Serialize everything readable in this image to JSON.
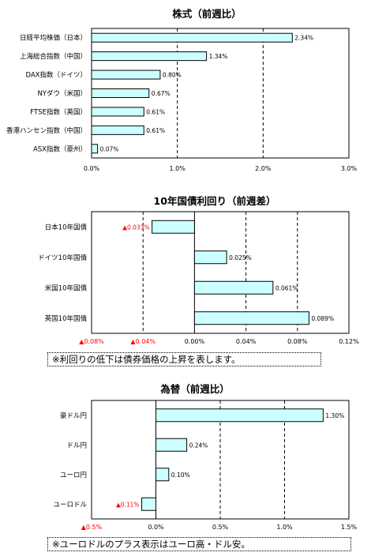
{
  "chart_data": [
    {
      "type": "bar",
      "orientation": "horizontal",
      "title": "株式（前週比）",
      "categories": [
        "日経平均株価（日本）",
        "上海総合指数（中国）",
        "DAX指数（ドイツ）",
        "NYダウ（米国）",
        "FTSE指数（英国）",
        "香港ハンセン指数（中国）",
        "ASX指数（豪州）"
      ],
      "values": [
        2.34,
        1.34,
        0.8,
        0.67,
        0.61,
        0.61,
        0.07
      ],
      "value_labels": [
        "2.34%",
        "1.34%",
        "0.80%",
        "0.67%",
        "0.61%",
        "0.61%",
        "0.07%"
      ],
      "xlim": [
        0,
        3
      ],
      "ticks": [
        0,
        1,
        2,
        3
      ],
      "tick_labels": [
        "0.0%",
        "1.0%",
        "2.0%",
        "3.0%"
      ],
      "grid": "dashed vertical",
      "bar_color": "#ccffff"
    },
    {
      "type": "bar",
      "orientation": "horizontal",
      "title": "10年国債利回り（前週差）",
      "categories": [
        "日本10年国債",
        "ドイツ10年国債",
        "米国10年国債",
        "英国10年国債"
      ],
      "values": [
        -0.033,
        0.025,
        0.061,
        0.089
      ],
      "value_labels": [
        "▲0.033%",
        "0.025%",
        "0.061%",
        "0.089%"
      ],
      "xlim": [
        -0.08,
        0.12
      ],
      "ticks": [
        -0.08,
        -0.04,
        0,
        0.04,
        0.08,
        0.12
      ],
      "tick_labels": [
        "▲0.08%",
        "▲0.04%",
        "0.00%",
        "0.04%",
        "0.08%",
        "0.12%"
      ],
      "grid": "dashed vertical",
      "bar_color": "#ccffff",
      "negative_label_color": "#ff0000",
      "note": "※利回りの低下は債券価格の上昇を表します。"
    },
    {
      "type": "bar",
      "orientation": "horizontal",
      "title": "為替（前週比）",
      "categories": [
        "豪ドル円",
        "ドル円",
        "ユーロ円",
        "ユーロドル"
      ],
      "values": [
        1.3,
        0.24,
        0.1,
        -0.11
      ],
      "value_labels": [
        "1.30%",
        "0.24%",
        "0.10%",
        "▲0.11%"
      ],
      "xlim": [
        -0.5,
        1.5
      ],
      "ticks": [
        -0.5,
        0,
        0.5,
        1.0,
        1.5
      ],
      "tick_labels": [
        "▲0.5%",
        "0.0%",
        "0.5%",
        "1.0%",
        "1.5%"
      ],
      "grid": "dashed vertical",
      "bar_color": "#ccffff",
      "negative_label_color": "#ff0000",
      "note": "※ユーロドルのプラス表示はユーロ高・ドル安。"
    }
  ]
}
